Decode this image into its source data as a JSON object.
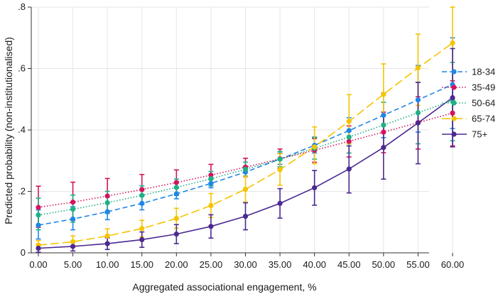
{
  "chart_data": {
    "type": "line",
    "title": "",
    "xlabel": "Aggregated associational engagement, %",
    "ylabel": "Predicted probability (non-institutionalised)",
    "x": [
      0,
      5,
      10,
      15,
      20,
      25,
      30,
      35,
      40,
      45,
      50,
      55,
      60
    ],
    "x_tick_labels": [
      "0.00",
      "5.00",
      "10.00",
      "15.00",
      "20.00",
      "25.00",
      "30.00",
      "35.00",
      "40.00",
      "45.00",
      "50.00",
      "55.00",
      "60.00"
    ],
    "y_ticks": [
      0,
      0.2,
      0.4,
      0.6,
      0.8
    ],
    "y_tick_labels": [
      "0",
      ".2",
      ".4",
      ".6",
      ".8"
    ],
    "xlim": [
      0,
      60
    ],
    "ylim": [
      0,
      0.8
    ],
    "grid": true,
    "legend_position": "right",
    "series": [
      {
        "name": "18-34",
        "color": "#1f86e8",
        "line_style": "dashed",
        "values": [
          0.09,
          0.11,
          0.134,
          0.161,
          0.192,
          0.226,
          0.263,
          0.305,
          0.35,
          0.398,
          0.448,
          0.498,
          0.548
        ],
        "ci_low": [
          0.045,
          0.075,
          0.108,
          0.14,
          0.176,
          0.212,
          0.248,
          0.288,
          0.325,
          0.355,
          0.375,
          0.393,
          0.405
        ],
        "ci_high": [
          0.14,
          0.15,
          0.162,
          0.185,
          0.21,
          0.242,
          0.28,
          0.325,
          0.377,
          0.44,
          0.52,
          0.61,
          0.7
        ]
      },
      {
        "name": "35-49",
        "color": "#d3155f",
        "line_style": "dotted",
        "values": [
          0.148,
          0.165,
          0.185,
          0.206,
          0.229,
          0.253,
          0.279,
          0.306,
          0.334,
          0.363,
          0.393,
          0.424,
          0.455
        ],
        "ci_low": [
          0.083,
          0.106,
          0.132,
          0.16,
          0.189,
          0.218,
          0.248,
          0.275,
          0.295,
          0.312,
          0.326,
          0.338,
          0.348
        ],
        "ci_high": [
          0.217,
          0.23,
          0.242,
          0.255,
          0.27,
          0.288,
          0.308,
          0.338,
          0.372,
          0.413,
          0.458,
          0.508,
          0.56
        ]
      },
      {
        "name": "50-64",
        "color": "#1fb085",
        "line_style": "dotted",
        "values": [
          0.123,
          0.142,
          0.163,
          0.187,
          0.213,
          0.241,
          0.272,
          0.305,
          0.34,
          0.377,
          0.416,
          0.456,
          0.496
        ],
        "ci_low": [
          0.075,
          0.1,
          0.128,
          0.157,
          0.187,
          0.218,
          0.25,
          0.28,
          0.305,
          0.325,
          0.342,
          0.355,
          0.365
        ],
        "ci_high": [
          0.178,
          0.188,
          0.2,
          0.218,
          0.24,
          0.265,
          0.295,
          0.33,
          0.375,
          0.43,
          0.49,
          0.555,
          0.62
        ]
      },
      {
        "name": "65-74",
        "color": "#f5c400",
        "line_style": "long-dashed",
        "values": [
          0.025,
          0.036,
          0.055,
          0.079,
          0.112,
          0.154,
          0.207,
          0.271,
          0.345,
          0.428,
          0.516,
          0.602,
          0.683
        ],
        "ci_low": [
          0.01,
          0.018,
          0.033,
          0.052,
          0.08,
          0.115,
          0.165,
          0.22,
          0.29,
          0.355,
          0.42,
          0.48,
          0.54
        ],
        "ci_high": [
          0.04,
          0.055,
          0.078,
          0.106,
          0.145,
          0.193,
          0.249,
          0.323,
          0.41,
          0.515,
          0.615,
          0.712,
          0.8
        ]
      },
      {
        "name": "75+",
        "color": "#4b2991",
        "line_style": "solid",
        "values": [
          0.015,
          0.021,
          0.03,
          0.043,
          0.061,
          0.086,
          0.119,
          0.161,
          0.212,
          0.273,
          0.343,
          0.423,
          0.505
        ],
        "ci_low": [
          0.002,
          0.006,
          0.011,
          0.018,
          0.03,
          0.048,
          0.075,
          0.113,
          0.155,
          0.195,
          0.24,
          0.29,
          0.345
        ],
        "ci_high": [
          0.028,
          0.036,
          0.049,
          0.068,
          0.092,
          0.124,
          0.163,
          0.209,
          0.268,
          0.348,
          0.446,
          0.555,
          0.665
        ]
      }
    ]
  }
}
